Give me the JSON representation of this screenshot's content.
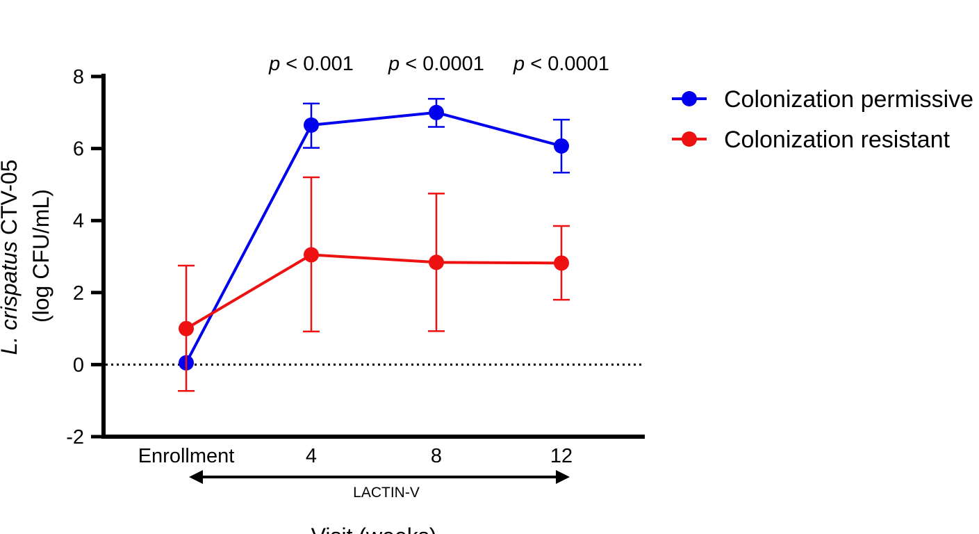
{
  "chart_data": {
    "type": "line",
    "title": "",
    "xlabel": "Visit (weeks)",
    "ylabel_italic": "L. crispatus",
    "ylabel_rest": " CTV-05",
    "ylabel_line2": "(log CFU/mL)",
    "categories": [
      "Enrollment",
      "4",
      "8",
      "12"
    ],
    "ylim": [
      -2,
      8
    ],
    "yticks": [
      -2,
      0,
      2,
      4,
      6,
      8
    ],
    "reference_line": {
      "y": 0,
      "style": "dotted"
    },
    "series": [
      {
        "name": "Colonization permissive",
        "color": "#0000ee",
        "values": [
          0.05,
          6.65,
          7.0,
          6.07
        ],
        "err_low": [
          0.05,
          6.02,
          6.6,
          5.33
        ],
        "err_high": [
          0.05,
          7.25,
          7.38,
          6.8
        ]
      },
      {
        "name": "Colonization resistant",
        "color": "#ee1111",
        "values": [
          1.0,
          3.05,
          2.84,
          2.82
        ],
        "err_low": [
          -0.73,
          0.92,
          0.93,
          1.8
        ],
        "err_high": [
          2.75,
          5.2,
          4.75,
          3.85
        ]
      }
    ],
    "annotations": [
      {
        "category": "4",
        "p_symbol": "p",
        "text": " < 0.001"
      },
      {
        "category": "8",
        "p_symbol": "p",
        "text": " < 0.0001"
      },
      {
        "category": "12",
        "p_symbol": "p",
        "text": " < 0.0001"
      }
    ],
    "treatment_label": "LACTIN-V",
    "legend_position": "top-right"
  }
}
